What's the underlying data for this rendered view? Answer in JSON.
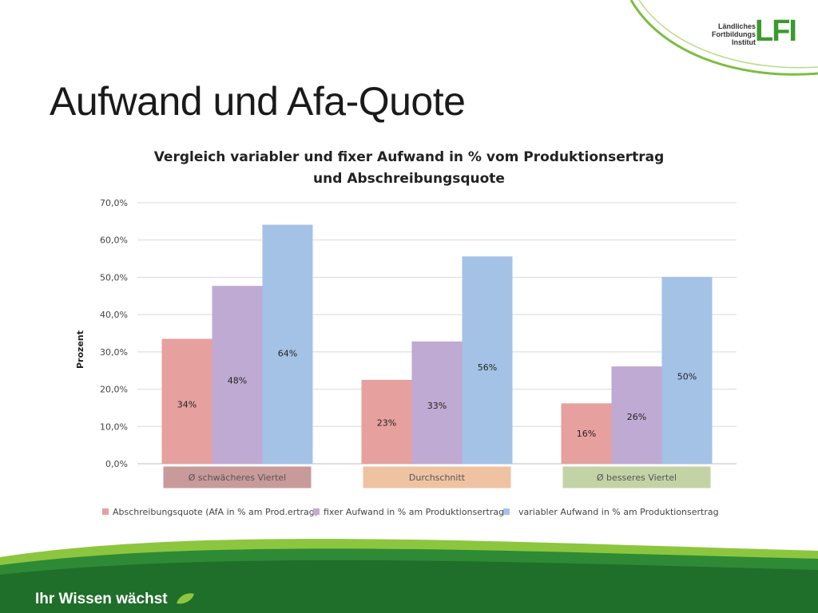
{
  "slide": {
    "title": "Aufwand und Afa-Quote",
    "footer_text": "Ihr Wissen wächst",
    "logo_text_1": "Ländliches",
    "logo_text_2": "Fortbildungs",
    "logo_text_3": "Institut",
    "logo_mark": "LFI"
  },
  "chart_data": {
    "type": "bar",
    "title_line1": "Vergleich variabler und fixer Aufwand in % vom Produktionsertrag",
    "title_line2": "und Abschreibungsquote",
    "ylabel": "Prozent",
    "xlabel": "",
    "ylim": [
      0,
      70
    ],
    "yticks": [
      "0,0%",
      "10,0%",
      "20,0%",
      "30,0%",
      "40,0%",
      "50,0%",
      "60,0%",
      "70,0%"
    ],
    "categories": [
      "Ø schwächeres Viertel",
      "Durchschnitt",
      "Ø  besseres Viertel"
    ],
    "category_colors": [
      "#c99a9a",
      "#efc3a2",
      "#c4d3a6"
    ],
    "grid": true,
    "legend_position": "bottom",
    "series": [
      {
        "name": "Abschreibungsquote (AfA in % am Prod.ertrag)",
        "values": [
          33.5,
          22.5,
          16.2
        ],
        "labels": [
          "34%",
          "23%",
          "16%"
        ],
        "color": "#e6a09e"
      },
      {
        "name": "fixer Aufwand in % am Produktionsertrag",
        "values": [
          47.7,
          32.8,
          26.1
        ],
        "labels": [
          "48%",
          "33%",
          "26%"
        ],
        "color": "#bfaad3"
      },
      {
        "name": "variabler Aufwand in % am Produktionsertrag",
        "values": [
          64.1,
          55.6,
          50.1
        ],
        "labels": [
          "64%",
          "56%",
          "50%"
        ],
        "color": "#a4c2e6"
      }
    ]
  }
}
